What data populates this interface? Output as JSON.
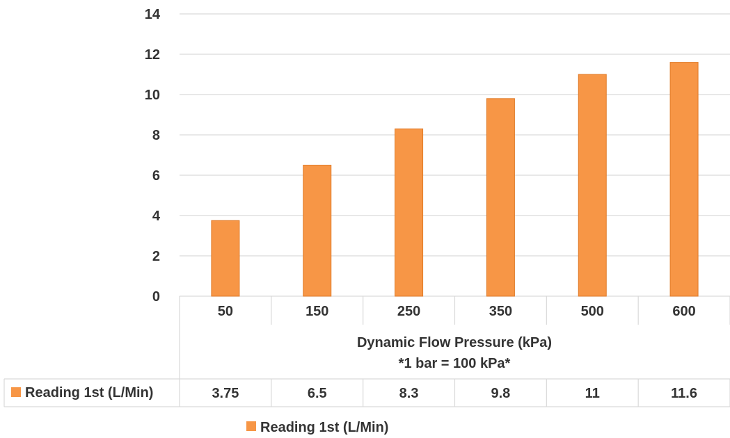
{
  "chart_data": {
    "type": "bar",
    "categories": [
      "50",
      "150",
      "250",
      "350",
      "500",
      "600"
    ],
    "series": [
      {
        "name": "Reading 1st (L/Min)",
        "values": [
          3.75,
          6.5,
          8.3,
          9.8,
          11,
          11.6
        ],
        "value_labels": [
          "3.75",
          "6.5",
          "8.3",
          "9.8",
          "11",
          "11.6"
        ],
        "color": "#F79646"
      }
    ],
    "xlabel_lines": [
      "Dynamic Flow Pressure (kPa)",
      "*1 bar = 100 kPa*"
    ],
    "ylabel": "",
    "ylim": [
      0,
      14
    ],
    "yticks": [
      0,
      2,
      4,
      6,
      8,
      10,
      12,
      14
    ],
    "grid": true,
    "legend_position": "bottom",
    "data_table": true
  },
  "colors": {
    "bar": "#F79646",
    "bar_stroke": "#E07B28",
    "grid": "#D9D9D9",
    "text": "#333333"
  }
}
